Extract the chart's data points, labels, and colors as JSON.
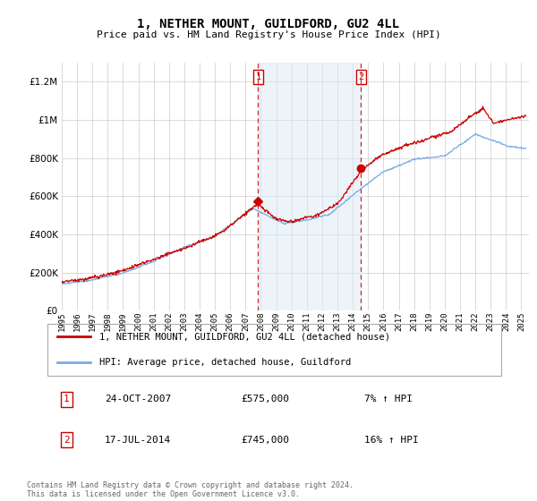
{
  "title": "1, NETHER MOUNT, GUILDFORD, GU2 4LL",
  "subtitle": "Price paid vs. HM Land Registry's House Price Index (HPI)",
  "legend_label_red": "1, NETHER MOUNT, GUILDFORD, GU2 4LL (detached house)",
  "legend_label_blue": "HPI: Average price, detached house, Guildford",
  "footnote": "Contains HM Land Registry data © Crown copyright and database right 2024.\nThis data is licensed under the Open Government Licence v3.0.",
  "sale1_label": "1",
  "sale1_date": "24-OCT-2007",
  "sale1_price": "£575,000",
  "sale1_hpi": "7% ↑ HPI",
  "sale2_label": "2",
  "sale2_date": "17-JUL-2014",
  "sale2_price": "£745,000",
  "sale2_hpi": "16% ↑ HPI",
  "ylim_min": 0,
  "ylim_max": 1300000,
  "xlim_start": 1995.0,
  "xlim_end": 2025.5,
  "sale1_year": 2007.82,
  "sale2_year": 2014.54,
  "sale1_price_val": 575000,
  "sale2_price_val": 745000,
  "red_color": "#cc0000",
  "blue_color": "#7aade0",
  "shade_color": "#daeaf7",
  "marker_box_color": "#cc0000",
  "background_color": "#ffffff",
  "grid_color": "#cccccc",
  "shade_alpha": 0.5
}
